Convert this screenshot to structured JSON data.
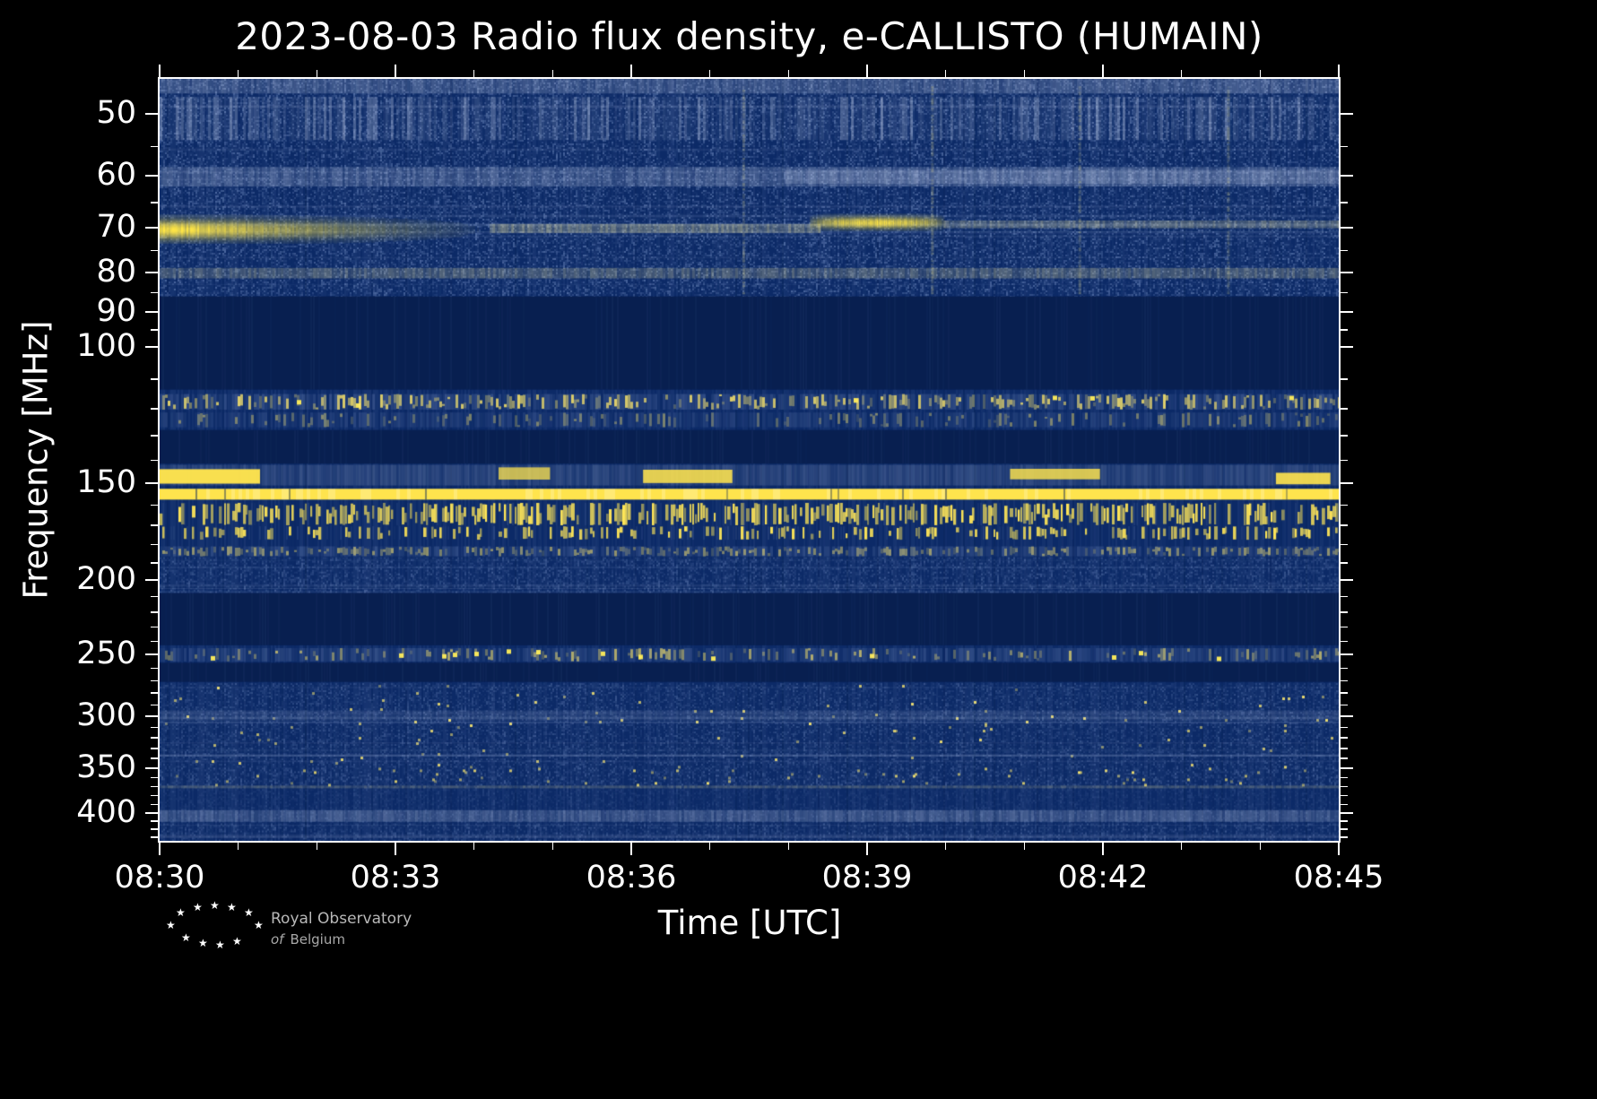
{
  "page": {
    "background": "#000000"
  },
  "chart_data": {
    "type": "heatmap",
    "subtype": "radio-spectrogram",
    "title": "2023-08-03 Radio flux density, e-CALLISTO (HUMAIN)",
    "date": "2023-08-03",
    "instrument": "e-CALLISTO",
    "station": "HUMAIN",
    "xlabel": "Time [UTC]",
    "ylabel": "Frequency [MHz]",
    "x_ticks": [
      "08:30",
      "08:33",
      "08:36",
      "08:39",
      "08:42",
      "08:45"
    ],
    "x_minor_tick_minutes": 1,
    "duration_minutes": 15,
    "y_ticks": [
      50,
      60,
      70,
      80,
      90,
      100,
      150,
      200,
      250,
      300,
      350,
      400
    ],
    "y_minor_ticks": [
      55,
      65,
      75,
      85,
      95,
      110,
      120,
      130,
      140,
      160,
      170,
      180,
      190,
      210,
      220,
      230,
      240,
      260,
      270,
      280,
      290,
      310,
      320,
      330,
      340,
      360,
      370,
      380,
      390,
      410,
      420,
      430
    ],
    "y_scale": "log",
    "y_range_mhz": [
      45,
      435
    ],
    "colors": {
      "base": "#0c2a67",
      "blank": "#081f50",
      "bright_yellow": "#ffe44d",
      "noise_blue": "#91aadc",
      "axis": "#ffffff",
      "background": "#000000"
    },
    "features": [
      {
        "kind": "noise",
        "f0": 45,
        "f1": 86,
        "level": 0.34,
        "streaks": 14
      },
      {
        "kind": "hband",
        "f0": 45,
        "f1": 47,
        "alpha": 0.22
      },
      {
        "kind": "hband",
        "f0": 47.5,
        "f1": 54,
        "alpha": 0.2,
        "patchy": true
      },
      {
        "kind": "hband",
        "f0": 58.5,
        "f1": 62,
        "alpha": 0.22
      },
      {
        "kind": "hband",
        "f0": 59,
        "f1": 61.5,
        "alpha": 0.18,
        "t0": 0.53,
        "t1": 1
      },
      {
        "kind": "fadeline",
        "f0": 79,
        "f1": 81.5,
        "alpha": 0.24
      },
      {
        "kind": "burst",
        "f0": 67.5,
        "f1": 73.5,
        "t0": 0,
        "t1": 0.3,
        "peak": 1.0,
        "shape": "fade"
      },
      {
        "kind": "fadeline",
        "f0": 69.3,
        "f1": 71.2,
        "t0": 0.28,
        "t1": 0.56,
        "alpha": 0.35
      },
      {
        "kind": "burst",
        "f0": 67.2,
        "f1": 70.8,
        "t0": 0.55,
        "t1": 0.665,
        "peak": 0.95,
        "shape": "bump"
      },
      {
        "kind": "fadeline",
        "f0": 68.6,
        "f1": 70.2,
        "t0": 0.665,
        "t1": 1,
        "alpha": 0.28
      },
      {
        "kind": "vstreaks",
        "f0": 46,
        "f1": 85,
        "times": [
          0.495,
          0.655,
          0.78,
          0.906
        ],
        "alpha": 0.3
      },
      {
        "kind": "blank",
        "f0": 86,
        "f1": 113.5
      },
      {
        "kind": "speckle",
        "f0": 115,
        "f1": 120.5,
        "density": 0.5,
        "bright": 0.85,
        "base": 0.15,
        "dots": 0.02
      },
      {
        "kind": "speckle",
        "f0": 121.5,
        "f1": 127,
        "density": 0.26,
        "bright": 0.45,
        "base": 0.1
      },
      {
        "kind": "blank",
        "f0": 128,
        "f1": 141.5
      },
      {
        "kind": "hband",
        "f0": 142,
        "f1": 151,
        "alpha": 0.13
      },
      {
        "kind": "dashes",
        "f0": 143,
        "f1": 150.5
      },
      {
        "kind": "solid",
        "f0": 152.5,
        "f1": 157.5
      },
      {
        "kind": "vspeckle",
        "f0": 159,
        "f1": 170,
        "density": 0.6
      },
      {
        "kind": "vspeckle",
        "f0": 170.5,
        "f1": 177.5,
        "density": 0.33
      },
      {
        "kind": "speckle",
        "f0": 181,
        "f1": 186.5,
        "density": 0.5,
        "bright": 0.55,
        "base": 0.14
      },
      {
        "kind": "noise",
        "f0": 187,
        "f1": 207,
        "level": 0.26,
        "streaks": 5
      },
      {
        "kind": "blank",
        "f0": 208,
        "f1": 243
      },
      {
        "kind": "speckle",
        "f0": 245,
        "f1": 255,
        "density": 0.3,
        "bright": 0.65,
        "base": 0.13,
        "dots": 0.035
      },
      {
        "kind": "blank",
        "f0": 256,
        "f1": 271
      },
      {
        "kind": "noise",
        "f0": 272,
        "f1": 347,
        "level": 0.22,
        "dots": 0.004,
        "streaks": 10
      },
      {
        "kind": "hband",
        "f0": 295,
        "f1": 304,
        "alpha": 0.1
      },
      {
        "kind": "noise",
        "f0": 348,
        "f1": 368,
        "level": 0.26,
        "dots": 0.012
      },
      {
        "kind": "noise",
        "f0": 369,
        "f1": 396,
        "level": 0.13
      },
      {
        "kind": "fadeline",
        "f0": 369,
        "f1": 372,
        "alpha": 0.2
      },
      {
        "kind": "hband",
        "f0": 397,
        "f1": 411,
        "alpha": 0.22
      },
      {
        "kind": "noise",
        "f0": 397,
        "f1": 412,
        "level": 0.18
      },
      {
        "kind": "noise",
        "f0": 413,
        "f1": 435,
        "level": 0.24,
        "streaks": 4
      }
    ]
  },
  "footer": {
    "line1": "Royal Observatory",
    "line2_italic": "of",
    "line2_rest": "Belgium"
  }
}
